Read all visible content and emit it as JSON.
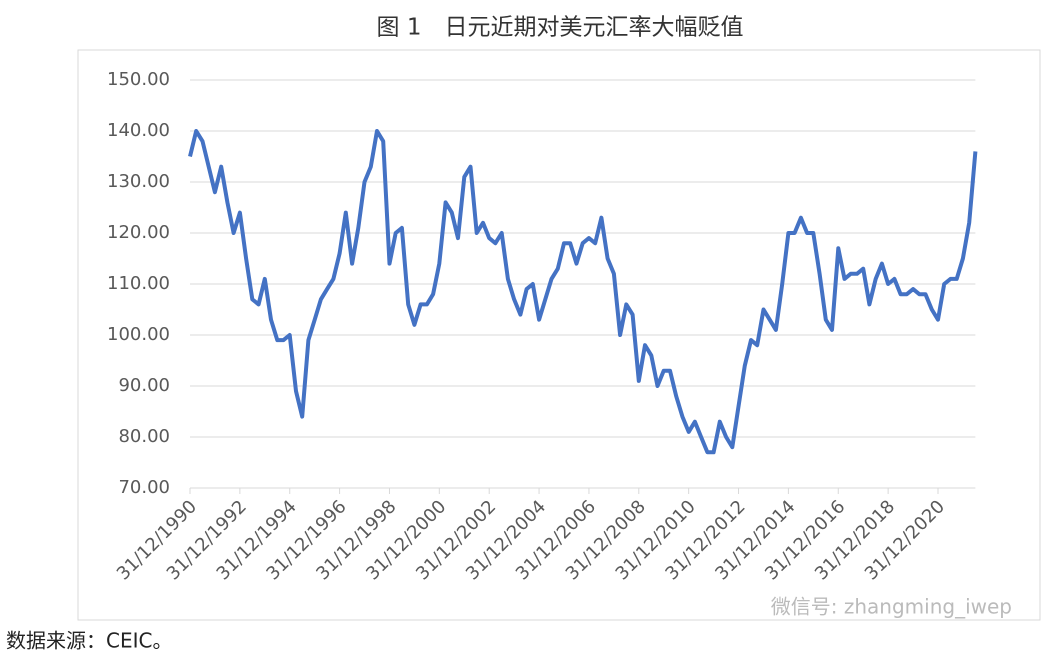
{
  "chart_data": {
    "type": "line",
    "title": "图 1　日元近期对美元汇率大幅贬值",
    "source": "数据来源：CEIC。",
    "watermark": "微信号: zhangming_iwep",
    "categories": [
      "31/12/1990",
      null,
      null,
      null,
      null,
      null,
      null,
      null,
      "31/12/1992",
      null,
      null,
      null,
      null,
      null,
      null,
      null,
      "31/12/1994",
      null,
      null,
      null,
      null,
      null,
      null,
      null,
      "31/12/1996",
      null,
      null,
      null,
      null,
      null,
      null,
      null,
      "31/12/1998",
      null,
      null,
      null,
      null,
      null,
      null,
      null,
      "31/12/2000",
      null,
      null,
      null,
      null,
      null,
      null,
      null,
      "31/12/2002",
      null,
      null,
      null,
      null,
      null,
      null,
      null,
      "31/12/2004",
      null,
      null,
      null,
      null,
      null,
      null,
      null,
      "31/12/2006",
      null,
      null,
      null,
      null,
      null,
      null,
      null,
      "31/12/2008",
      null,
      null,
      null,
      null,
      null,
      null,
      null,
      "31/12/2010",
      null,
      null,
      null,
      null,
      null,
      null,
      null,
      "31/12/2012",
      null,
      null,
      null,
      null,
      null,
      null,
      null,
      "31/12/2014",
      null,
      null,
      null,
      null,
      null,
      null,
      null,
      "31/12/2016",
      null,
      null,
      null,
      null,
      null,
      null,
      null,
      "31/12/2018",
      null,
      null,
      null,
      null,
      null,
      null,
      null,
      "31/12/2020",
      null,
      null,
      null,
      null,
      null,
      null
    ],
    "series": [
      {
        "color": "#4472c4",
        "values": [
          135,
          140,
          138,
          133,
          128,
          133,
          126,
          120,
          124,
          115,
          107,
          106,
          111,
          103,
          99,
          99,
          100,
          89,
          84,
          99,
          103,
          107,
          109,
          111,
          116,
          124,
          114,
          121,
          130,
          133,
          140,
          138,
          114,
          120,
          121,
          106,
          102,
          106,
          106,
          108,
          114,
          126,
          124,
          119,
          131,
          133,
          120,
          122,
          119,
          118,
          120,
          111,
          107,
          104,
          109,
          110,
          103,
          107,
          111,
          113,
          118,
          118,
          114,
          118,
          119,
          118,
          123,
          115,
          112,
          100,
          106,
          104,
          91,
          98,
          96,
          90,
          93,
          93,
          88,
          84,
          81,
          83,
          80,
          77,
          77,
          83,
          80,
          78,
          86,
          94,
          99,
          98,
          105,
          103,
          101,
          110,
          120,
          120,
          123,
          120,
          120,
          112,
          103,
          101,
          117,
          111,
          112,
          112,
          113,
          106,
          111,
          114,
          110,
          111,
          108,
          108,
          109,
          108,
          108,
          105,
          103,
          110,
          111,
          111,
          115,
          122,
          136
        ]
      }
    ],
    "ylim": [
      70,
      150
    ],
    "yticks": [
      {
        "value": 70,
        "label": "70.00"
      },
      {
        "value": 80,
        "label": "80.00"
      },
      {
        "value": 90,
        "label": "90.00"
      },
      {
        "value": 100,
        "label": "100.00"
      },
      {
        "value": 110,
        "label": "110.00"
      },
      {
        "value": 120,
        "label": "120.00"
      },
      {
        "value": 130,
        "label": "130.00"
      },
      {
        "value": 140,
        "label": "140.00"
      },
      {
        "value": 150,
        "label": "150.00"
      }
    ],
    "grid": true
  }
}
